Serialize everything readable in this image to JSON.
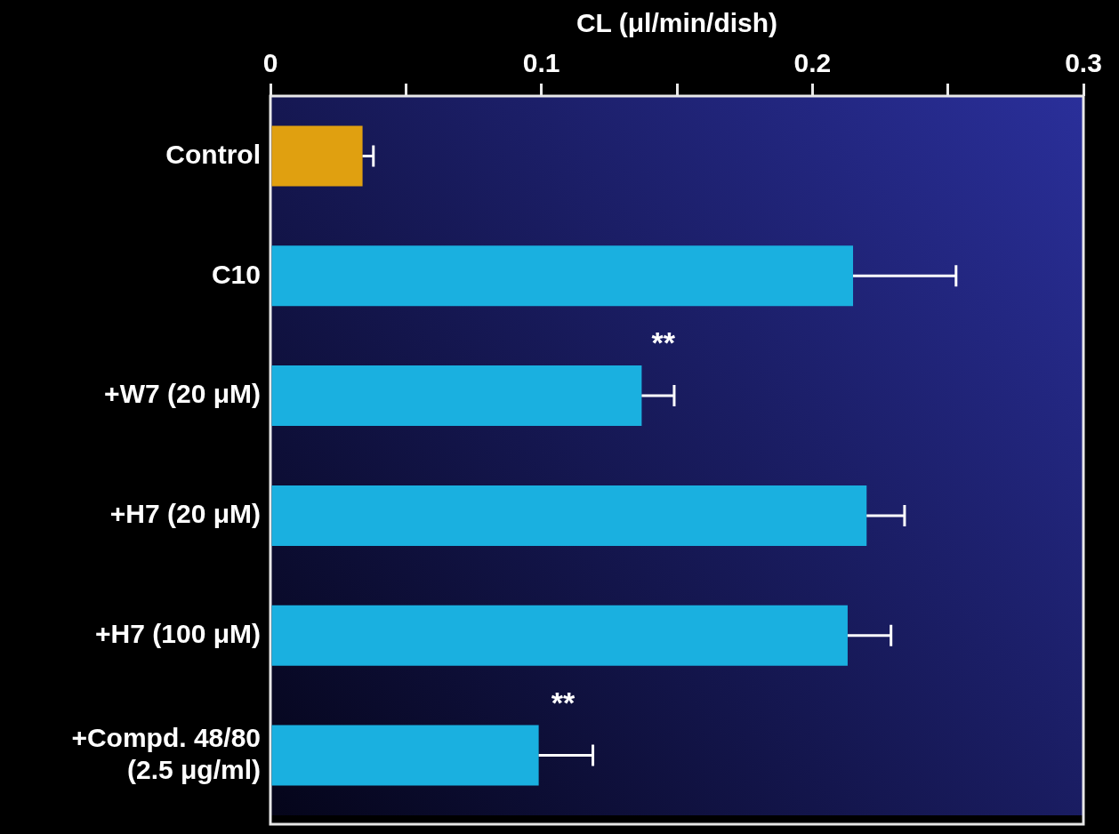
{
  "chart_data": {
    "type": "bar",
    "orientation": "horizontal",
    "xlabel": "CL (μl/min/dish)",
    "categories": [
      "Control",
      "C10",
      "+W7 (20 μM)",
      "+H7 (20 μM)",
      "+H7 (100 μM)",
      "+Compd. 48/80\n(2.5 μg/ml)"
    ],
    "values": [
      0.034,
      0.215,
      0.137,
      0.22,
      0.213,
      0.099
    ],
    "colors": [
      "#e0a010",
      "#1ab0e0",
      "#1ab0e0",
      "#1ab0e0",
      "#1ab0e0",
      "#1ab0e0"
    ],
    "errors": [
      [
        0.034,
        0.038
      ],
      [
        0.215,
        0.253
      ],
      [
        0.137,
        0.149
      ],
      [
        0.22,
        0.234
      ],
      [
        0.213,
        0.229
      ],
      [
        0.099,
        0.119
      ]
    ],
    "xlim": [
      0,
      0.3
    ],
    "xticks": [
      0,
      {
        "value": 0.05,
        "label": null
      },
      0.1,
      {
        "value": 0.15,
        "label": null
      },
      0.2,
      {
        "value": 0.25,
        "label": null
      },
      0.3
    ],
    "annotations": [
      {
        "text": "**",
        "x": 0.145,
        "y": "+W7 (20 μM)"
      },
      {
        "text": "**",
        "x": 0.108,
        "y": "+Compd. 48/80\n(2.5 μg/ml)"
      }
    ]
  }
}
